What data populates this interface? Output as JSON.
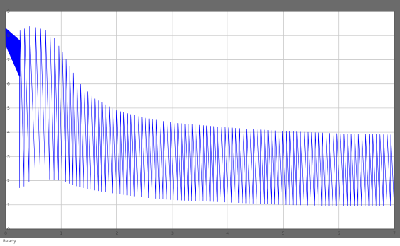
{
  "window": {
    "status_text": "Ready"
  },
  "colors": {
    "frame": "#6b6b6b",
    "axes_background": "#ffffff",
    "grid": "#c8c8c8",
    "signal": "#0000ff"
  },
  "chart_data": {
    "type": "line",
    "title": "",
    "xlabel": "",
    "ylabel": "",
    "grid": true,
    "xlim": [
      0,
      7
    ],
    "ylim": [
      0,
      9
    ],
    "x_ticks": [
      0,
      1,
      2,
      3,
      4,
      5,
      6,
      7
    ],
    "y_ticks": [
      0,
      1,
      2,
      3,
      4,
      5,
      6,
      7,
      8,
      9
    ],
    "x_tick_labels": [
      "0",
      "1",
      "2",
      "3",
      "4",
      "5",
      "6",
      "7"
    ],
    "y_tick_labels": [
      "0",
      "1",
      "2",
      "3",
      "4",
      "5",
      "6",
      "7",
      "8",
      "9"
    ],
    "series": [
      {
        "color": "#0000ff",
        "style": "oscillating",
        "period": 0.065,
        "initial_band": {
          "t_end": 0.25,
          "upper": [
            8.3,
            7.8
          ],
          "lower": [
            7.6,
            6.3
          ]
        },
        "upper_envelope": {
          "t": [
            0.0,
            0.25,
            0.45,
            0.6,
            0.8,
            1.0,
            1.3,
            1.6,
            2.0,
            2.5,
            3.0,
            3.5,
            4.0,
            5.0,
            6.0,
            7.0
          ],
          "v": [
            8.3,
            8.2,
            8.4,
            8.3,
            8.2,
            7.4,
            6.1,
            5.4,
            4.9,
            4.6,
            4.4,
            4.3,
            4.2,
            4.05,
            3.95,
            3.9
          ]
        },
        "lower_envelope": {
          "t": [
            0.3,
            0.45,
            0.6,
            0.8,
            1.0,
            1.3,
            1.6,
            2.0,
            2.5,
            3.0,
            3.5,
            4.0,
            5.0,
            6.0,
            7.0
          ],
          "v": [
            1.7,
            2.0,
            2.1,
            2.05,
            2.0,
            1.75,
            1.6,
            1.45,
            1.3,
            1.2,
            1.15,
            1.1,
            1.0,
            0.95,
            0.95
          ]
        }
      }
    ]
  }
}
